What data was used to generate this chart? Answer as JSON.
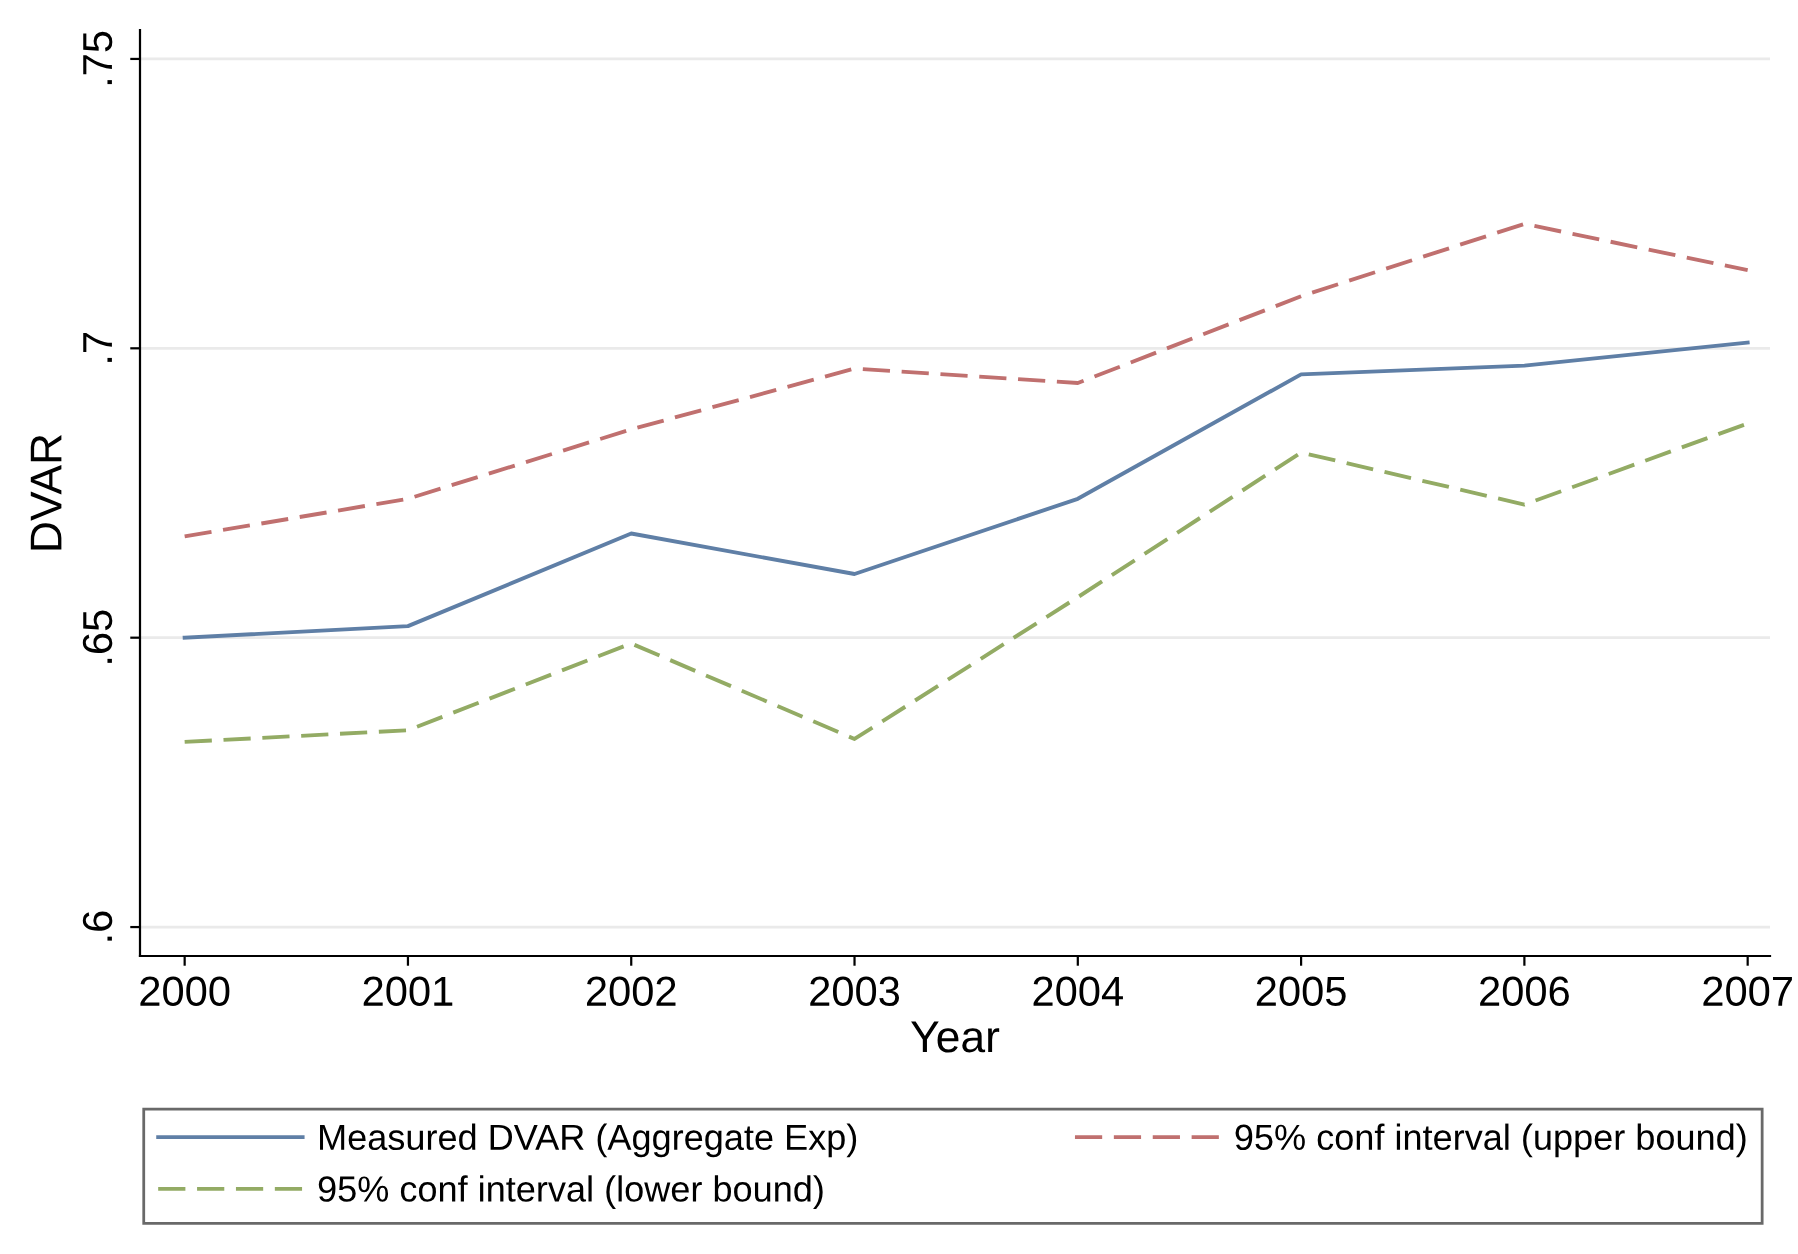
{
  "chart_data": {
    "type": "line",
    "xlabel": "Year",
    "ylabel": "DVAR",
    "x": [
      2000,
      2001,
      2002,
      2003,
      2004,
      2005,
      2006,
      2007
    ],
    "series": [
      {
        "name": "Measured DVAR (Aggregate Exp)",
        "color": "#5f7fa6",
        "line_style": "solid",
        "values": [
          0.65,
          0.652,
          0.668,
          0.661,
          0.674,
          0.6955,
          0.697,
          0.701
        ]
      },
      {
        "name": "95% conf interval (upper bound)",
        "color": "#c0706f",
        "line_style": "dashed",
        "values": [
          0.6675,
          0.674,
          0.686,
          0.6965,
          0.694,
          0.709,
          0.7215,
          0.7135
        ]
      },
      {
        "name": "95% conf interval (lower bound)",
        "color": "#93ab64",
        "line_style": "dashed",
        "values": [
          0.632,
          0.634,
          0.649,
          0.6325,
          0.657,
          0.682,
          0.673,
          0.687
        ]
      }
    ],
    "xlim": [
      1999.8,
      2007.1
    ],
    "xticks": [
      2000,
      2001,
      2002,
      2003,
      2004,
      2005,
      2006,
      2007
    ],
    "ylim": [
      0.595,
      0.755
    ],
    "yticks": [
      {
        "value": 0.6,
        "label": ".6"
      },
      {
        "value": 0.65,
        "label": ".65"
      },
      {
        "value": 0.7,
        "label": ".7"
      },
      {
        "value": 0.75,
        "label": ".75"
      }
    ],
    "grid": "y",
    "legend": "bottom",
    "marker": "none"
  }
}
